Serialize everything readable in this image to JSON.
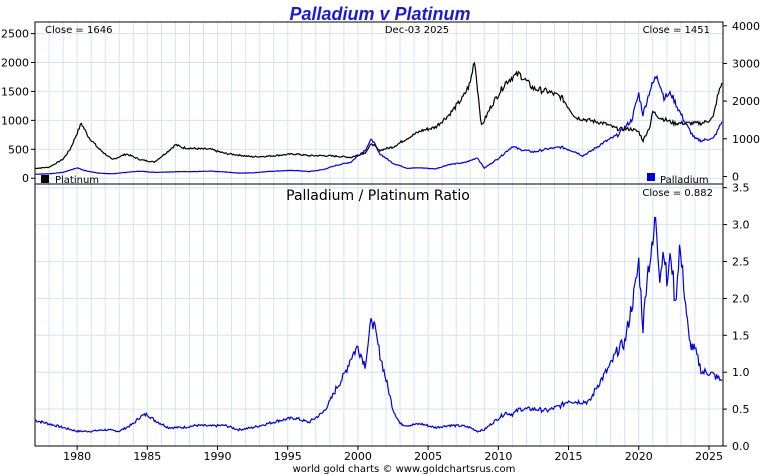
{
  "chart_data": [
    {
      "type": "line",
      "title": "Palladium v Platinum",
      "date_label": "Dec-03  2025",
      "left_close_label": "Close = 1646",
      "right_close_label": "Close = 1451",
      "x_ticks": [
        "1980",
        "1985",
        "1990",
        "1995",
        "2000",
        "2005",
        "2010",
        "2015",
        "2020",
        "2025"
      ],
      "xlim": [
        1977.0,
        2026.0
      ],
      "left_axis": {
        "ticks": [
          "0",
          "500",
          "1000",
          "1500",
          "2000",
          "2500"
        ],
        "ylim": [
          -100,
          2700
        ]
      },
      "right_axis": {
        "ticks": [
          "0",
          "1000",
          "2000",
          "3000",
          "4000"
        ],
        "ylim": [
          -200,
          4100
        ]
      },
      "grid": true,
      "series": [
        {
          "name": "Platinum",
          "axis": "left",
          "color": "#000000",
          "x": [
            1977.0,
            1978.0,
            1979.0,
            1979.5,
            1980.0,
            1980.3,
            1980.8,
            1981.5,
            1982.5,
            1983.5,
            1984.5,
            1985.5,
            1986.5,
            1987.0,
            1987.5,
            1988.5,
            1989.5,
            1990.5,
            1991.5,
            1992.5,
            1993.5,
            1994.5,
            1995.5,
            1996.5,
            1997.5,
            1998.5,
            1999.5,
            2000.5,
            2001.0,
            2001.5,
            2002.5,
            2003.5,
            2004.5,
            2005.5,
            2006.5,
            2007.5,
            2008.0,
            2008.3,
            2008.8,
            2009.5,
            2010.5,
            2011.0,
            2011.5,
            2012.5,
            2013.5,
            2014.5,
            2015.5,
            2016.5,
            2017.5,
            2018.5,
            2019.5,
            2020.0,
            2020.3,
            2020.8,
            2021.0,
            2021.5,
            2022.5,
            2023.5,
            2024.5,
            2025.0,
            2025.3,
            2025.6,
            2025.92
          ],
          "y": [
            170,
            190,
            330,
            500,
            780,
            950,
            720,
            520,
            320,
            420,
            320,
            280,
            470,
            580,
            530,
            510,
            500,
            430,
            400,
            370,
            380,
            400,
            420,
            390,
            390,
            380,
            360,
            440,
            600,
            480,
            540,
            690,
            820,
            880,
            1100,
            1400,
            1650,
            2050,
            900,
            1250,
            1650,
            1750,
            1800,
            1550,
            1500,
            1400,
            1050,
            1000,
            950,
            850,
            850,
            800,
            650,
            900,
            1150,
            1050,
            950,
            950,
            950,
            1000,
            1050,
            1400,
            1646
          ]
        },
        {
          "name": "Palladium",
          "axis": "right",
          "color": "#0000dd",
          "x": [
            1977.0,
            1978.0,
            1979.0,
            1980.0,
            1980.5,
            1981.5,
            1982.5,
            1983.5,
            1984.5,
            1985.5,
            1986.5,
            1987.5,
            1988.5,
            1989.5,
            1990.5,
            1991.5,
            1992.5,
            1993.5,
            1994.5,
            1995.5,
            1996.5,
            1997.5,
            1998.5,
            1999.0,
            1999.5,
            2000.0,
            2000.5,
            2001.0,
            2001.5,
            2002.5,
            2003.5,
            2004.5,
            2005.5,
            2006.5,
            2007.5,
            2008.0,
            2008.5,
            2009.0,
            2010.0,
            2011.0,
            2011.5,
            2012.5,
            2013.5,
            2014.5,
            2015.5,
            2016.0,
            2016.5,
            2017.5,
            2018.5,
            2019.5,
            2020.0,
            2020.3,
            2020.8,
            2021.3,
            2021.8,
            2022.3,
            2022.8,
            2023.5,
            2024.0,
            2024.5,
            2025.0,
            2025.3,
            2025.6,
            2025.92
          ],
          "y": [
            60,
            70,
            110,
            230,
            160,
            90,
            70,
            110,
            140,
            110,
            120,
            130,
            130,
            140,
            120,
            90,
            95,
            130,
            150,
            160,
            130,
            180,
            300,
            340,
            380,
            550,
            700,
            1000,
            620,
            350,
            220,
            230,
            200,
            320,
            360,
            420,
            500,
            220,
            480,
            800,
            720,
            650,
            730,
            780,
            650,
            550,
            650,
            900,
            1100,
            1500,
            2200,
            1650,
            2300,
            2700,
            2100,
            2200,
            1800,
            1300,
            1000,
            950,
            1000,
            1000,
            1200,
            1451
          ]
        }
      ]
    },
    {
      "type": "line",
      "title": "Palladium  /  Platinum Ratio",
      "close_label": "Close = 0.882",
      "x_ticks": [
        "1980",
        "1985",
        "1990",
        "1995",
        "2000",
        "2005",
        "2010",
        "2015",
        "2020",
        "2025"
      ],
      "xlim": [
        1977.0,
        2026.0
      ],
      "right_axis": {
        "ticks": [
          "0.0",
          "0.5",
          "1.0",
          "1.5",
          "2.0",
          "2.5",
          "3.0",
          "3.5"
        ],
        "ylim": [
          0.0,
          3.55
        ]
      },
      "grid": true,
      "series": [
        {
          "name": "",
          "color": "#0000dd",
          "x": [
            1977.0,
            1978.0,
            1979.0,
            1980.0,
            1981.0,
            1982.0,
            1983.0,
            1984.0,
            1984.5,
            1985.0,
            1985.5,
            1986.5,
            1987.5,
            1988.5,
            1989.5,
            1990.5,
            1991.5,
            1992.5,
            1993.5,
            1994.5,
            1995.5,
            1996.5,
            1997.5,
            1998.0,
            1998.5,
            1999.0,
            1999.5,
            2000.0,
            2000.5,
            2001.0,
            2001.5,
            2002.0,
            2002.5,
            2003.0,
            2003.5,
            2004.5,
            2005.5,
            2006.5,
            2007.5,
            2008.0,
            2008.5,
            2009.0,
            2009.5,
            2010.5,
            2011.0,
            2011.5,
            2012.5,
            2013.5,
            2014.5,
            2015.0,
            2015.5,
            2016.5,
            2017.0,
            2017.5,
            2018.0,
            2018.5,
            2019.0,
            2019.5,
            2019.8,
            2020.0,
            2020.3,
            2020.6,
            2021.0,
            2021.2,
            2021.5,
            2021.8,
            2022.0,
            2022.3,
            2022.6,
            2022.9,
            2023.2,
            2023.6,
            2024.0,
            2024.5,
            2025.0,
            2025.4,
            2025.92
          ],
          "y": [
            0.35,
            0.3,
            0.25,
            0.2,
            0.2,
            0.22,
            0.2,
            0.3,
            0.4,
            0.43,
            0.35,
            0.25,
            0.25,
            0.28,
            0.27,
            0.28,
            0.22,
            0.25,
            0.3,
            0.35,
            0.38,
            0.32,
            0.45,
            0.6,
            0.8,
            0.95,
            1.2,
            1.35,
            1.1,
            1.75,
            1.3,
            0.9,
            0.5,
            0.3,
            0.28,
            0.3,
            0.25,
            0.28,
            0.27,
            0.25,
            0.2,
            0.22,
            0.3,
            0.45,
            0.43,
            0.5,
            0.5,
            0.48,
            0.55,
            0.62,
            0.6,
            0.6,
            0.8,
            0.95,
            1.1,
            1.3,
            1.4,
            1.9,
            2.2,
            2.5,
            1.6,
            2.35,
            2.7,
            3.15,
            2.3,
            2.7,
            2.2,
            2.6,
            1.9,
            2.7,
            2.2,
            1.4,
            1.3,
            1.0,
            1.0,
            0.95,
            0.882
          ]
        }
      ]
    }
  ],
  "footer": "world gold charts © www.goldchartsrus.com",
  "legend": {
    "platinum": "Platinum",
    "palladium": "Palladium"
  },
  "colors": {
    "platinum": "#000000",
    "palladium": "#0000dd",
    "title": "#1a1adb",
    "grid": "#d7e3ee"
  }
}
